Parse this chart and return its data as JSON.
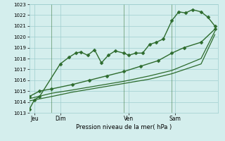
{
  "background_color": "#d4eeed",
  "grid_color": "#9ecece",
  "line_color": "#2d6b2d",
  "marker_color": "#2d6b2d",
  "xlabel": "Pression niveau de la mer( hPa )",
  "ylim": [
    1013,
    1023
  ],
  "xlim": [
    0,
    11.0
  ],
  "yticks": [
    1013,
    1014,
    1015,
    1016,
    1017,
    1018,
    1019,
    1020,
    1021,
    1022,
    1023
  ],
  "day_labels": [
    "Jeu",
    "Dim",
    "Ven",
    "Sam"
  ],
  "day_positions": [
    0.3,
    1.8,
    5.8,
    8.5
  ],
  "vline_positions": [
    1.3,
    5.5,
    8.3
  ],
  "series": [
    {
      "x": [
        0.0,
        0.3,
        0.6,
        1.8,
        2.3,
        2.7,
        3.0,
        3.4,
        3.8,
        4.2,
        4.6,
        5.0,
        5.5,
        5.8,
        6.2,
        6.6,
        7.0,
        7.4,
        7.8,
        8.3,
        8.7,
        9.1,
        9.5,
        10.0,
        10.4,
        10.8
      ],
      "y": [
        1013.3,
        1014.2,
        1014.5,
        1017.5,
        1018.1,
        1018.5,
        1018.6,
        1018.3,
        1018.8,
        1017.6,
        1018.3,
        1018.7,
        1018.5,
        1018.3,
        1018.5,
        1018.5,
        1019.3,
        1019.5,
        1019.8,
        1021.5,
        1022.3,
        1022.2,
        1022.5,
        1022.3,
        1021.8,
        1021.0
      ],
      "marker": "D",
      "markersize": 2.5,
      "linewidth": 1.0
    },
    {
      "x": [
        0.0,
        0.6,
        1.3,
        2.5,
        3.5,
        4.5,
        5.5,
        6.5,
        7.5,
        8.3,
        9.0,
        10.0,
        10.8
      ],
      "y": [
        1014.5,
        1015.0,
        1015.2,
        1015.6,
        1016.0,
        1016.4,
        1016.8,
        1017.3,
        1017.8,
        1018.5,
        1019.0,
        1019.5,
        1020.7
      ],
      "marker": "D",
      "markersize": 2.5,
      "linewidth": 1.0
    },
    {
      "x": [
        0.0,
        1.3,
        2.5,
        4.0,
        5.5,
        7.0,
        8.3,
        10.0,
        10.8
      ],
      "y": [
        1014.3,
        1014.8,
        1015.1,
        1015.5,
        1015.9,
        1016.4,
        1016.9,
        1018.0,
        1020.5
      ],
      "marker": null,
      "markersize": 0,
      "linewidth": 0.9
    },
    {
      "x": [
        0.0,
        1.3,
        2.5,
        4.0,
        5.5,
        7.0,
        8.3,
        10.0,
        10.8
      ],
      "y": [
        1014.1,
        1014.5,
        1014.9,
        1015.3,
        1015.7,
        1016.1,
        1016.6,
        1017.5,
        1020.2
      ],
      "marker": null,
      "markersize": 0,
      "linewidth": 0.9
    }
  ]
}
